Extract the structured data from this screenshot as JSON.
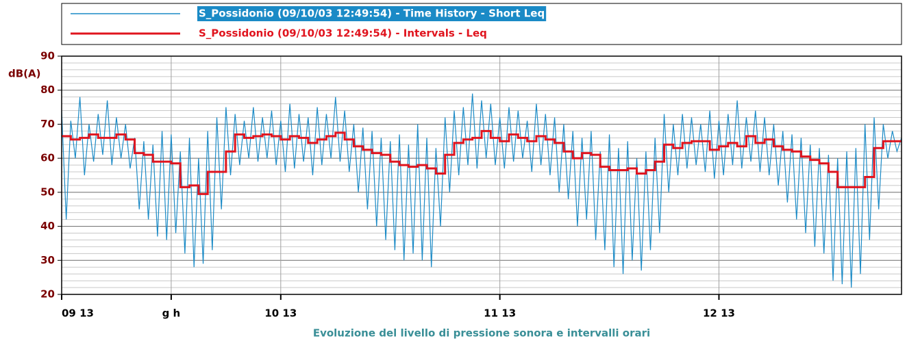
{
  "chart_data": {
    "type": "line",
    "title": "Evoluzione del livello di pressione sonora e intervalli orari",
    "ylabel": "dB(A)",
    "xlim": [
      0,
      92
    ],
    "ylim": [
      20,
      90
    ],
    "xticks": [
      {
        "value": 0,
        "label": "09 13"
      },
      {
        "value": 12,
        "label": "g h"
      },
      {
        "value": 24,
        "label": "10 13"
      },
      {
        "value": 48,
        "label": "11 13"
      },
      {
        "value": 72,
        "label": "12 13"
      }
    ],
    "yticks": [
      20,
      30,
      40,
      50,
      60,
      70,
      80,
      90
    ],
    "grid": true,
    "series": [
      {
        "name": "S_Possidonio (09/10/03 12:49:54) - Time History - Short Leq",
        "color": "#1a8ac6",
        "step": false,
        "x": [
          0,
          0.5,
          1,
          1.5,
          2,
          2.5,
          3,
          3.5,
          4,
          4.5,
          5,
          5.5,
          6,
          6.5,
          7,
          7.5,
          8,
          8.5,
          9,
          9.5,
          10,
          10.5,
          11,
          11.5,
          12,
          12.5,
          13,
          13.5,
          14,
          14.5,
          15,
          15.5,
          16,
          16.5,
          17,
          17.5,
          18,
          18.5,
          19,
          19.5,
          20,
          20.5,
          21,
          21.5,
          22,
          22.5,
          23,
          23.5,
          24,
          24.5,
          25,
          25.5,
          26,
          26.5,
          27,
          27.5,
          28,
          28.5,
          29,
          29.5,
          30,
          30.5,
          31,
          31.5,
          32,
          32.5,
          33,
          33.5,
          34,
          34.5,
          35,
          35.5,
          36,
          36.5,
          37,
          37.5,
          38,
          38.5,
          39,
          39.5,
          40,
          40.5,
          41,
          41.5,
          42,
          42.5,
          43,
          43.5,
          44,
          44.5,
          45,
          45.5,
          46,
          46.5,
          47,
          47.5,
          48,
          48.5,
          49,
          49.5,
          50,
          50.5,
          51,
          51.5,
          52,
          52.5,
          53,
          53.5,
          54,
          54.5,
          55,
          55.5,
          56,
          56.5,
          57,
          57.5,
          58,
          58.5,
          59,
          59.5,
          60,
          60.5,
          61,
          61.5,
          62,
          62.5,
          63,
          63.5,
          64,
          64.5,
          65,
          65.5,
          66,
          66.5,
          67,
          67.5,
          68,
          68.5,
          69,
          69.5,
          70,
          70.5,
          71,
          71.5,
          72,
          72.5,
          73,
          73.5,
          74,
          74.5,
          75,
          75.5,
          76,
          76.5,
          77,
          77.5,
          78,
          78.5,
          79,
          79.5,
          80,
          80.5,
          81,
          81.5,
          82,
          82.5,
          83,
          83.5,
          84,
          84.5,
          85,
          85.5,
          86,
          86.5,
          87,
          87.5,
          88,
          88.5,
          89,
          89.5,
          90,
          90.5,
          91,
          91.5,
          92
        ],
        "values": [
          74,
          42,
          71,
          60,
          78,
          55,
          70,
          59,
          73,
          61,
          77,
          58,
          72,
          60,
          70,
          57,
          66,
          45,
          65,
          42,
          64,
          37,
          68,
          36,
          67,
          38,
          62,
          32,
          66,
          28,
          60,
          29,
          68,
          33,
          72,
          45,
          75,
          55,
          73,
          58,
          71,
          60,
          75,
          59,
          72,
          60,
          74,
          58,
          71,
          56,
          76,
          57,
          73,
          59,
          72,
          55,
          75,
          58,
          73,
          60,
          78,
          59,
          74,
          56,
          70,
          50,
          69,
          45,
          68,
          40,
          66,
          36,
          65,
          33,
          67,
          30,
          64,
          32,
          70,
          30,
          66,
          28,
          63,
          40,
          72,
          50,
          74,
          55,
          75,
          58,
          79,
          57,
          77,
          60,
          76,
          58,
          72,
          57,
          75,
          59,
          74,
          60,
          71,
          56,
          76,
          58,
          73,
          55,
          72,
          50,
          70,
          48,
          68,
          40,
          66,
          42,
          68,
          36,
          62,
          33,
          67,
          28,
          63,
          26,
          65,
          30,
          60,
          27,
          62,
          33,
          66,
          38,
          73,
          50,
          70,
          55,
          73,
          57,
          72,
          58,
          70,
          56,
          74,
          54,
          71,
          55,
          73,
          58,
          77,
          57,
          72,
          59,
          74,
          56,
          72,
          55,
          70,
          52,
          68,
          47,
          67,
          42,
          66,
          38,
          64,
          34,
          63,
          32,
          61,
          24,
          60,
          23,
          62,
          22,
          63,
          26,
          70,
          36,
          72,
          45,
          70,
          60,
          68,
          62,
          66
        ]
      },
      {
        "name": "S_Possidonio (09/10/03 12:49:54) - Intervals - Leq",
        "color": "#e0141e",
        "step": true,
        "x": [
          0,
          1,
          2,
          3,
          4,
          5,
          6,
          7,
          8,
          9,
          10,
          11,
          12,
          13,
          14,
          15,
          16,
          17,
          18,
          19,
          20,
          21,
          22,
          23,
          24,
          25,
          26,
          27,
          28,
          29,
          30,
          31,
          32,
          33,
          34,
          35,
          36,
          37,
          38,
          39,
          40,
          41,
          42,
          43,
          44,
          45,
          46,
          47,
          48,
          49,
          50,
          51,
          52,
          53,
          54,
          55,
          56,
          57,
          58,
          59,
          60,
          61,
          62,
          63,
          64,
          65,
          66,
          67,
          68,
          69,
          70,
          71,
          72,
          73,
          74,
          75,
          76,
          77,
          78,
          79,
          80,
          81,
          82,
          83,
          84,
          85,
          86,
          87,
          88,
          89,
          90,
          91
        ],
        "values": [
          66.5,
          65.5,
          66,
          67,
          66,
          66,
          67,
          65.5,
          61.5,
          61,
          59,
          59,
          58.5,
          51.5,
          52,
          49.5,
          56,
          56,
          62,
          67,
          66,
          66.5,
          67,
          66.5,
          65.5,
          66.5,
          66,
          64.5,
          65.5,
          66.5,
          67.5,
          65.5,
          63.5,
          62.5,
          61.5,
          61,
          59,
          58,
          57.5,
          58,
          57,
          55.5,
          61,
          64.5,
          65.5,
          66,
          68,
          66,
          65,
          67,
          66,
          65,
          66.5,
          65.5,
          64.5,
          62,
          60,
          61.5,
          61,
          57.5,
          56.5,
          56.5,
          57,
          55.5,
          56.5,
          59,
          64,
          63,
          64.5,
          65,
          65,
          62.5,
          63.5,
          64.5,
          63.5,
          66.5,
          64.5,
          65.5,
          63.5,
          62.5,
          62,
          60.5,
          59.5,
          58.5,
          56,
          51.5,
          51.5,
          51.5,
          54.5,
          63,
          65,
          65
        ]
      }
    ]
  }
}
